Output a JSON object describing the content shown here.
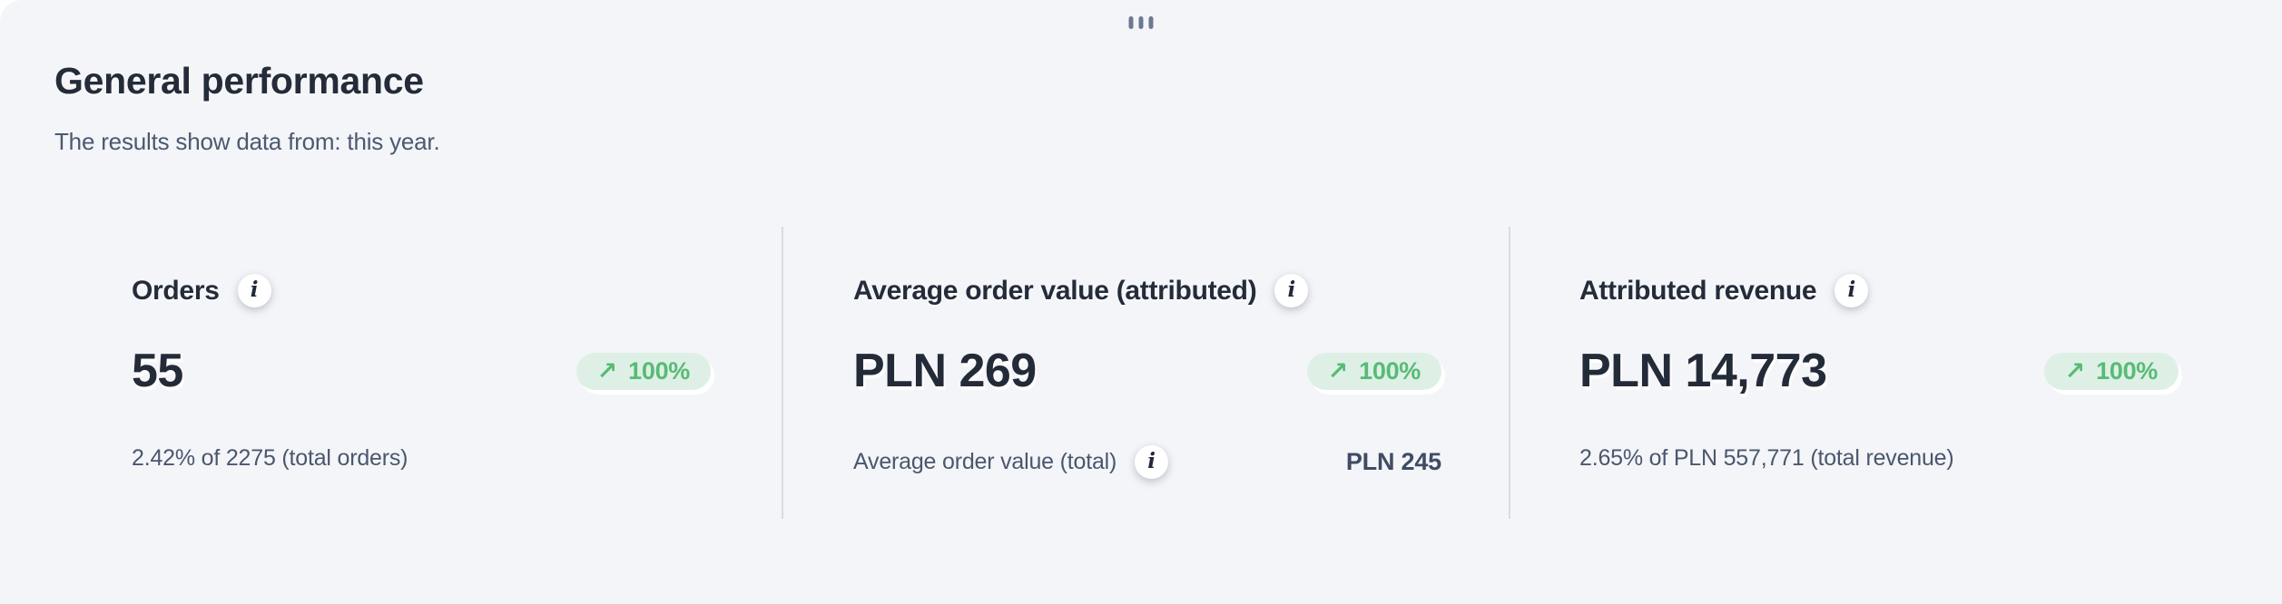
{
  "page": {
    "title": "General performance",
    "subtitle": "The results show data from: this year."
  },
  "colors": {
    "page_bg": "#f4f5f9",
    "dark_text": "#242c3a",
    "muted_text": "#4a576d",
    "divider": "#d9dbe0",
    "trend_green": "#57bb76",
    "trend_green_bg": "#def0e5"
  },
  "icons": {
    "drag_handle": "drag-handle",
    "info": "info-icon",
    "trend_up_arrow": "↗"
  },
  "cards": [
    {
      "title": "Orders",
      "value": "55",
      "trend": {
        "direction": "up",
        "arrow": "↗",
        "label": "100%"
      },
      "footer": {
        "text": "2.42% of 2275 (total orders)"
      }
    },
    {
      "title": "Average order value (attributed)",
      "value": "PLN 269",
      "trend": {
        "direction": "up",
        "arrow": "↗",
        "label": "100%"
      },
      "footer": {
        "label": "Average order value (total)",
        "value": "PLN 245"
      }
    },
    {
      "title": "Attributed revenue",
      "value": "PLN 14,773",
      "trend": {
        "direction": "up",
        "arrow": "↗",
        "label": "100%"
      },
      "footer": {
        "text": "2.65% of PLN 557,771 (total revenue)"
      }
    }
  ]
}
